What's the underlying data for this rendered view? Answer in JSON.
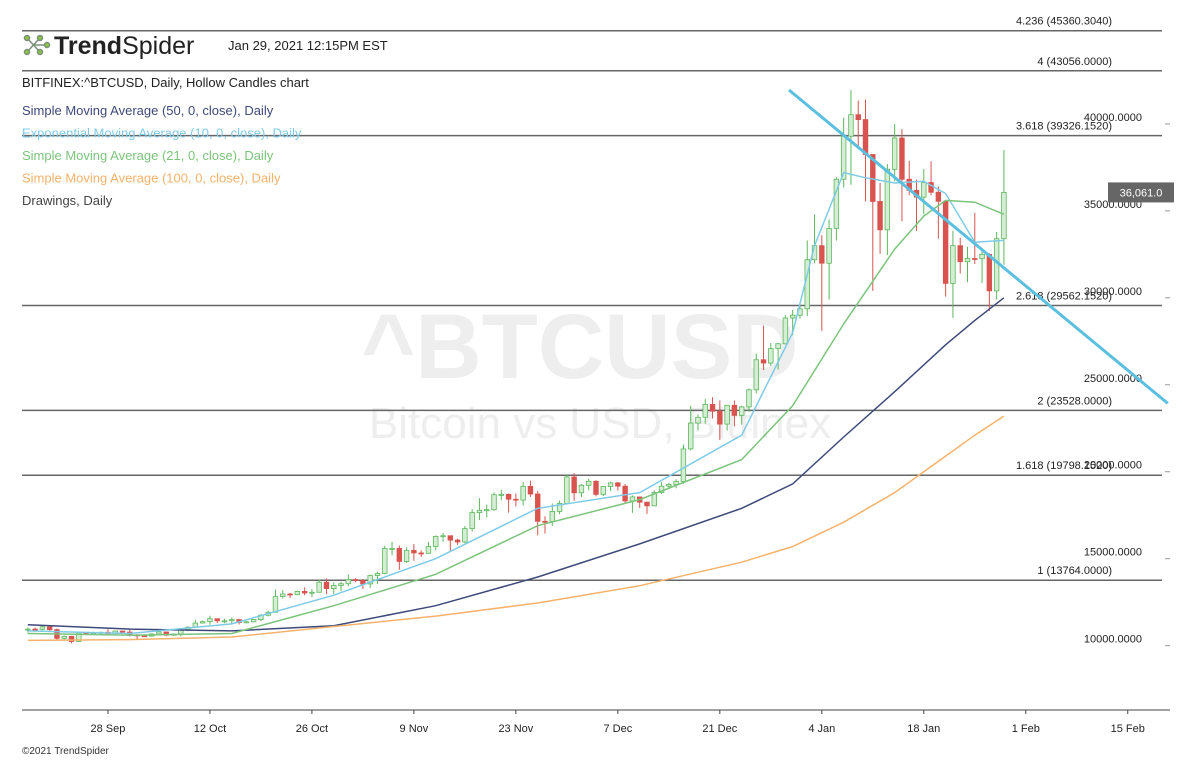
{
  "header": {
    "logo_bold": "Trend",
    "logo_light": "Spider",
    "timestamp": "Jan 29, 2021 12:15PM EST",
    "symbol_line": "BITFINEX:^BTCUSD, Daily, Hollow Candles chart",
    "footer": "©2021 TrendSpider"
  },
  "chart_data": {
    "type": "candlestick",
    "watermark": "^BTCUSD",
    "watermark_sub": "Bitcoin vs USD, Bitfinex",
    "up_color": "#5cb85c",
    "down_color": "#d9534f",
    "x": [
      3,
      4,
      5,
      6,
      7,
      8,
      9,
      10,
      11,
      12,
      13,
      14,
      15,
      16,
      17,
      18,
      19,
      20,
      21,
      22,
      23,
      24,
      25,
      26,
      27,
      28,
      29,
      30,
      31,
      32,
      33,
      34,
      35,
      36,
      37,
      38,
      39,
      40,
      41,
      42,
      43,
      44,
      45,
      46,
      47,
      48,
      49,
      50,
      51,
      52,
      53,
      54,
      55,
      56,
      57,
      58,
      59,
      60,
      61,
      62,
      63,
      64,
      65,
      66,
      67,
      68,
      69,
      70,
      71,
      72,
      73,
      74,
      75,
      76,
      77,
      78,
      79,
      80,
      81,
      82,
      83,
      84,
      85,
      86,
      87,
      88,
      89,
      90,
      91,
      92,
      93,
      94,
      95,
      96,
      97,
      98,
      99,
      100,
      101,
      102,
      103,
      104,
      105,
      106,
      107,
      108,
      109,
      110,
      111,
      112,
      113,
      114,
      115,
      116,
      117,
      118,
      119,
      120,
      121,
      122,
      123,
      124,
      125,
      126,
      127,
      128,
      129,
      130,
      131,
      132,
      133,
      134,
      135,
      136,
      137
    ],
    "open": [
      10900,
      10950,
      10940,
      11080,
      10920,
      10420,
      10530,
      10240,
      10740,
      10690,
      10730,
      10770,
      10700,
      10840,
      10780,
      10620,
      10570,
      10550,
      10670,
      10790,
      10600,
      10670,
      10920,
      11060,
      11300,
      11380,
      11550,
      11430,
      11430,
      11500,
      11330,
      11370,
      11500,
      11750,
      11920,
      12820,
      12970,
      12930,
      13120,
      13030,
      13070,
      13650,
      13280,
      13460,
      13560,
      13800,
      13750,
      13550,
      14030,
      14150,
      15590,
      15590,
      14840,
      15480,
      15330,
      15310,
      15700,
      16280,
      16320,
      16070,
      15960,
      16730,
      17650,
      17780,
      17820,
      18680,
      18700,
      18420,
      18370,
      19160,
      18720,
      17150,
      17140,
      17720,
      18180,
      19700,
      18790,
      19220,
      19450,
      18700,
      19150,
      19360,
      19170,
      18320,
      18550,
      18250,
      18040,
      18800,
      19170,
      19270,
      19440,
      21310,
      22800,
      23130,
      23870,
      23480,
      22740,
      23820,
      23240,
      23730,
      24710,
      26440,
      26250,
      27080,
      27360,
      28840,
      29000,
      29370,
      32190,
      33000,
      31990,
      33990,
      36820,
      39290,
      40530,
      40250,
      38240,
      35540,
      33910,
      37390,
      39190,
      36820,
      36180,
      35790,
      36630,
      36070,
      35550,
      30830,
      33000,
      32080,
      32260,
      32250,
      32500,
      30400,
      33400
    ],
    "high": [
      11050,
      11040,
      11180,
      11090,
      10990,
      10580,
      10560,
      10790,
      10790,
      10800,
      10800,
      10950,
      10870,
      10850,
      10940,
      10660,
      10600,
      10700,
      10800,
      10800,
      10690,
      10960,
      11110,
      11490,
      11440,
      11720,
      11560,
      11550,
      11620,
      11540,
      11420,
      11530,
      11810,
      12010,
      13230,
      13190,
      13030,
      13170,
      13350,
      13250,
      13790,
      13860,
      13640,
      13670,
      14100,
      13880,
      13830,
      14080,
      14250,
      15750,
      15970,
      15760,
      15660,
      15850,
      15480,
      15970,
      16340,
      16480,
      16330,
      16150,
      16880,
      17850,
      18480,
      18110,
      18810,
      18970,
      18750,
      18750,
      19410,
      19490,
      18900,
      17440,
      18180,
      18350,
      19850,
      19920,
      19300,
      19590,
      19520,
      19180,
      19420,
      19410,
      19290,
      18640,
      18560,
      18270,
      18930,
      19400,
      19350,
      19570,
      21560,
      23800,
      23290,
      24170,
      24290,
      24100,
      23840,
      24100,
      23800,
      24790,
      26800,
      28400,
      27400,
      27400,
      29000,
      29300,
      29600,
      33300,
      34800,
      33600,
      34500,
      36940,
      40360,
      41950,
      41340,
      41400,
      38260,
      36600,
      37690,
      40000,
      39700,
      37880,
      36800,
      37400,
      37850,
      36400,
      35600,
      33850,
      33450,
      32940,
      34880,
      32800,
      32560,
      33780,
      38500
    ],
    "low": [
      10750,
      10820,
      10880,
      10780,
      10300,
      10360,
      10140,
      10200,
      10600,
      10650,
      10620,
      10650,
      10650,
      10680,
      10530,
      10380,
      10510,
      10520,
      10620,
      10540,
      10570,
      10540,
      10830,
      11040,
      11270,
      11200,
      11300,
      11290,
      11260,
      11220,
      11320,
      11350,
      11410,
      11690,
      11900,
      12710,
      12740,
      12900,
      12900,
      12800,
      13060,
      12970,
      12970,
      13130,
      13420,
      13640,
      13250,
      13320,
      13540,
      14100,
      15200,
      14360,
      14750,
      14880,
      15110,
      15280,
      15480,
      15980,
      15440,
      15800,
      15890,
      16560,
      17220,
      17370,
      17750,
      18360,
      17650,
      18000,
      18060,
      18550,
      16340,
      16440,
      16880,
      17560,
      18180,
      18330,
      18540,
      18930,
      18580,
      18600,
      18880,
      18920,
      18210,
      17640,
      17920,
      17580,
      18020,
      18720,
      19000,
      19050,
      19300,
      21230,
      22370,
      22760,
      23060,
      21820,
      22360,
      22610,
      22700,
      23450,
      24500,
      25850,
      26080,
      25880,
      27320,
      27850,
      28800,
      28950,
      32000,
      28100,
      29900,
      33290,
      36340,
      36500,
      38720,
      35550,
      30400,
      32530,
      32460,
      36700,
      34400,
      35900,
      33850,
      34800,
      35900,
      33400,
      30070,
      28850,
      31400,
      30900,
      31950,
      30850,
      29240,
      29900,
      31900
    ],
    "close": [
      10950,
      10940,
      11080,
      10920,
      10420,
      10530,
      10240,
      10740,
      10690,
      10730,
      10770,
      10700,
      10840,
      10780,
      10620,
      10570,
      10550,
      10670,
      10790,
      10600,
      10670,
      10920,
      11060,
      11300,
      11380,
      11550,
      11430,
      11430,
      11500,
      11330,
      11370,
      11500,
      11750,
      11920,
      12820,
      12970,
      12930,
      13120,
      13030,
      13070,
      13650,
      13280,
      13460,
      13560,
      13800,
      13750,
      13550,
      14030,
      14150,
      15590,
      15590,
      14840,
      15480,
      15330,
      15310,
      15700,
      16280,
      16320,
      16070,
      15960,
      16730,
      17650,
      17780,
      17820,
      18680,
      18700,
      18420,
      18370,
      19160,
      18720,
      17150,
      17140,
      17720,
      18180,
      19700,
      18790,
      19220,
      19450,
      18700,
      19150,
      19360,
      19170,
      18320,
      18550,
      18250,
      18040,
      18800,
      19170,
      19270,
      19440,
      21310,
      22800,
      23130,
      23870,
      23480,
      22740,
      23820,
      23240,
      23730,
      24710,
      26440,
      26250,
      27080,
      27360,
      28840,
      29000,
      29370,
      32190,
      33000,
      31990,
      33990,
      36820,
      39290,
      40530,
      40250,
      38240,
      35540,
      33910,
      37390,
      39190,
      36820,
      36180,
      35790,
      36630,
      36070,
      35550,
      30830,
      33000,
      32080,
      32260,
      32250,
      32500,
      30400,
      33400,
      36061
    ],
    "series": [
      {
        "name": "Simple Moving Average (50, 0, close), Daily",
        "color": "#3d4a7a",
        "line_width": 1.5,
        "x": [
          3,
          17,
          31,
          45,
          59,
          73,
          87,
          101,
          108,
          115,
          122,
          129,
          133,
          137
        ],
        "values": [
          11200,
          10950,
          10850,
          11150,
          12300,
          13950,
          15850,
          17900,
          19300,
          22000,
          24600,
          27300,
          28700,
          30000
        ]
      },
      {
        "name": "Exponential Moving Average (10, 0, close), Daily",
        "color": "#7ecbe8",
        "line_width": 1.5,
        "x": [
          3,
          17,
          31,
          45,
          59,
          73,
          87,
          101,
          108,
          111,
          115,
          118,
          122,
          126,
          129,
          133,
          137
        ],
        "values": [
          10850,
          10700,
          11250,
          12900,
          15000,
          17900,
          18800,
          22100,
          28000,
          33000,
          37200,
          36900,
          36600,
          36700,
          36000,
          33200,
          33300
        ]
      },
      {
        "name": "Simple Moving Average (21, 0, close), Daily",
        "color": "#7cc47c",
        "line_width": 1.5,
        "x": [
          3,
          17,
          31,
          45,
          59,
          73,
          87,
          101,
          108,
          115,
          122,
          126,
          129,
          133,
          137
        ],
        "values": [
          10700,
          10600,
          10700,
          12300,
          14100,
          16900,
          18400,
          20700,
          23800,
          28500,
          32800,
          34700,
          35600,
          35500,
          34800
        ]
      },
      {
        "name": "Simple Moving Average (100, 0, close), Daily",
        "color": "#f5b26b",
        "line_width": 1.5,
        "x": [
          3,
          17,
          31,
          45,
          59,
          73,
          87,
          101,
          108,
          115,
          122,
          129,
          133,
          137
        ],
        "values": [
          10300,
          10350,
          10500,
          11100,
          11700,
          12450,
          13450,
          14800,
          15700,
          17100,
          18800,
          20900,
          22100,
          23200
        ]
      },
      {
        "name": "Drawings, Daily",
        "color": "#5bbfe0",
        "text_color": "#444444",
        "line_width": 3,
        "x": [
          107.5,
          159.5
        ],
        "values": [
          41950,
          23930
        ]
      }
    ],
    "fib_levels": [
      {
        "value": 45360.304,
        "label": "4.236 (45360.3040)"
      },
      {
        "value": 43056,
        "label": "4 (43056.0000)"
      },
      {
        "value": 39326.152,
        "label": "3.618 (39326.1520)"
      },
      {
        "value": 29562.152,
        "label": "2.618 (29562.1520)"
      },
      {
        "value": 23528,
        "label": "2 (23528.0000)"
      },
      {
        "value": 19798.152,
        "label": "1.618 (19798.1520)"
      },
      {
        "value": 13764,
        "label": "1 (13764.0000)"
      }
    ],
    "last_price": {
      "value": 36061,
      "label": "36,061.0"
    },
    "xlim": [
      2.2,
      159.8
    ],
    "xticks": [
      {
        "value": 14,
        "label": "28 Sep"
      },
      {
        "value": 28,
        "label": "12 Oct"
      },
      {
        "value": 42,
        "label": "26 Oct"
      },
      {
        "value": 56,
        "label": "9 Nov"
      },
      {
        "value": 70,
        "label": "23 Nov"
      },
      {
        "value": 84,
        "label": "7 Dec"
      },
      {
        "value": 98,
        "label": "21 Dec"
      },
      {
        "value": 112,
        "label": "4 Jan"
      },
      {
        "value": 126,
        "label": "18 Jan"
      },
      {
        "value": 140,
        "label": "1 Feb"
      },
      {
        "value": 154,
        "label": "15 Feb"
      }
    ],
    "ylim": [
      6300,
      45400
    ],
    "yticks": [
      {
        "value": 10000,
        "label": "10000.0000"
      },
      {
        "value": 15000,
        "label": "15000.0000"
      },
      {
        "value": 20000,
        "label": "20000.0000"
      },
      {
        "value": 25000,
        "label": "25000.0000"
      },
      {
        "value": 30000,
        "label": "30000.0000"
      },
      {
        "value": 35000,
        "label": "35000.0000"
      },
      {
        "value": 40000,
        "label": "40000.0000"
      }
    ]
  }
}
